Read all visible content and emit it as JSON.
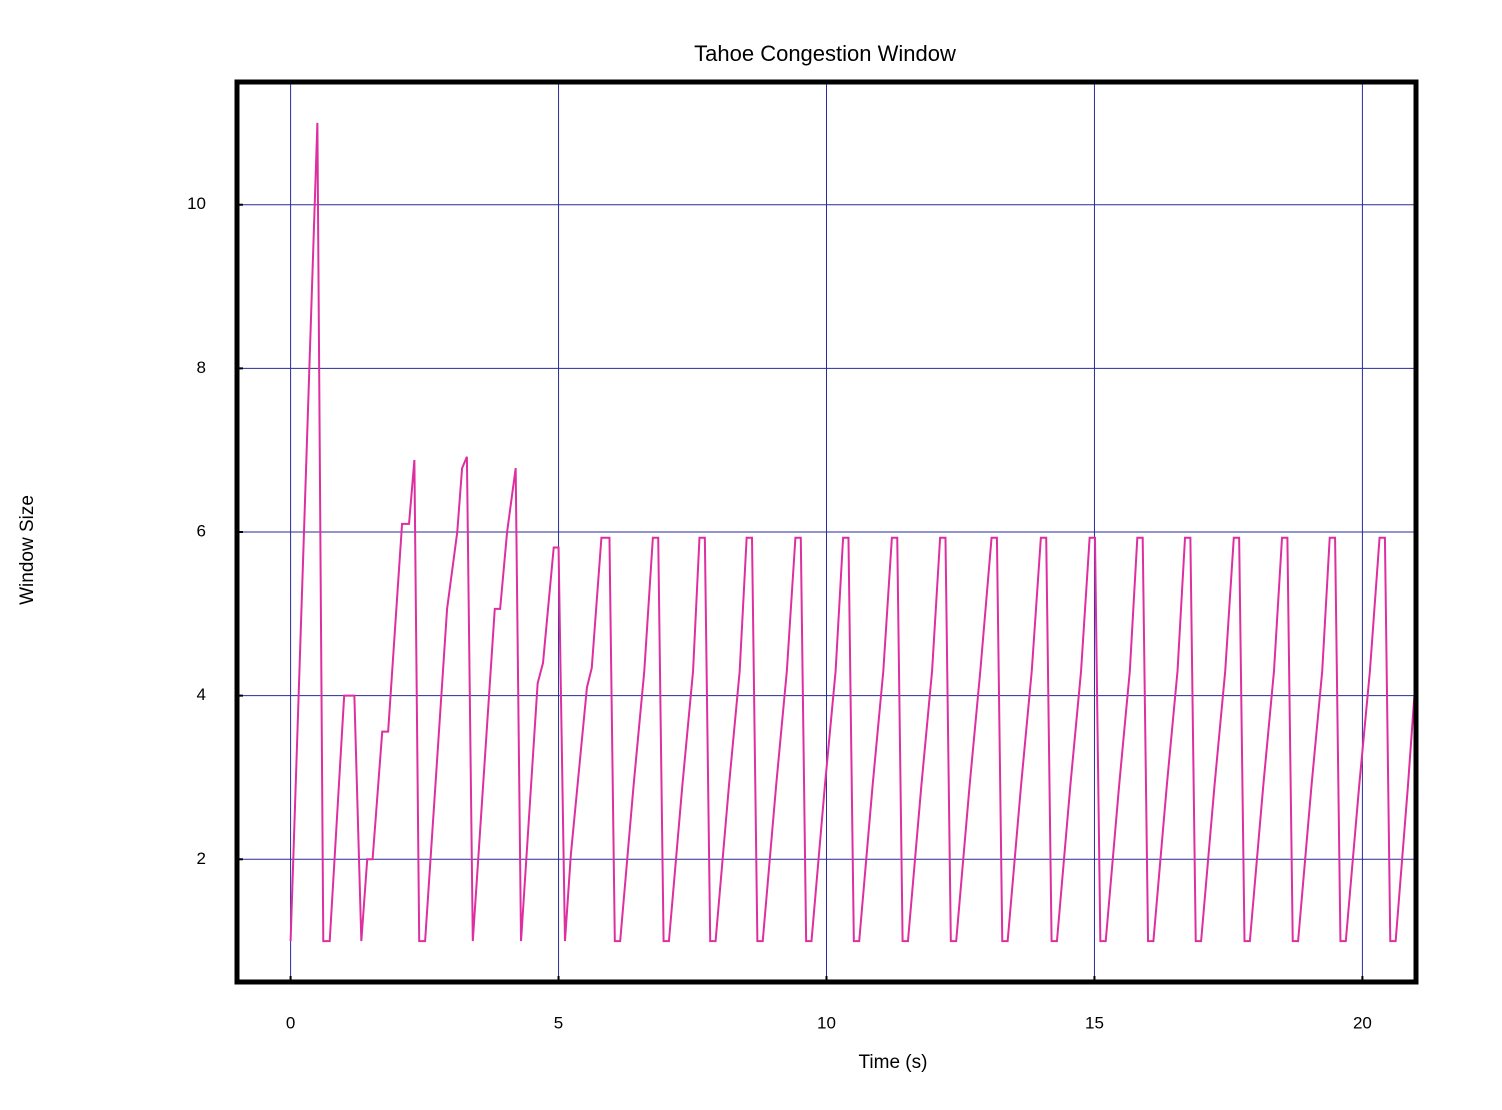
{
  "chart_data": {
    "type": "line",
    "title": "Tahoe Congestion Window",
    "x_label": "Time (s)",
    "y_label": "Window Size",
    "xlim": [
      -1,
      21
    ],
    "ylim": [
      0.5,
      11.5
    ],
    "xticks": [
      0,
      5,
      10,
      15,
      20
    ],
    "yticks": [
      2,
      4,
      6,
      8,
      10
    ],
    "grid": true,
    "grid_color": "#2a2a9a",
    "series": [
      {
        "color": "#dd2fa0",
        "x": [
          0,
          0.5,
          0.61,
          0.73,
          1.0,
          1.19,
          1.32,
          1.43,
          1.53,
          1.71,
          1.82,
          2.08,
          2.21,
          2.31,
          2.4,
          2.51,
          2.92,
          3.11,
          3.2,
          3.29,
          3.4,
          3.81,
          3.91,
          4.04,
          4.2,
          4.3,
          4.61,
          4.71,
          4.91,
          5.0,
          5.12,
          5.23,
          5.53,
          5.62,
          5.8,
          5.95,
          6.05,
          6.15,
          6.4,
          6.6,
          6.76,
          6.86,
          6.96,
          7.06,
          7.31,
          7.51,
          7.63,
          7.73,
          7.83,
          7.93,
          8.18,
          8.38,
          8.51,
          8.61,
          8.71,
          8.81,
          9.06,
          9.26,
          9.42,
          9.52,
          9.62,
          9.72,
          9.97,
          10.17,
          10.31,
          10.41,
          10.51,
          10.61,
          10.86,
          11.06,
          11.22,
          11.32,
          11.42,
          11.52,
          11.77,
          11.97,
          12.12,
          12.22,
          12.32,
          12.42,
          12.67,
          12.87,
          13.08,
          13.18,
          13.28,
          13.38,
          13.63,
          13.83,
          14.0,
          14.1,
          14.2,
          14.3,
          14.55,
          14.75,
          14.91,
          15.01,
          15.11,
          15.21,
          15.46,
          15.66,
          15.8,
          15.9,
          16.0,
          16.1,
          16.35,
          16.55,
          16.69,
          16.79,
          16.89,
          16.99,
          17.24,
          17.44,
          17.6,
          17.7,
          17.8,
          17.9,
          18.15,
          18.35,
          18.5,
          18.6,
          18.7,
          18.8,
          19.05,
          19.25,
          19.39,
          19.49,
          19.59,
          19.69,
          19.94,
          20.14,
          20.32,
          20.42,
          20.52,
          20.62,
          20.85,
          20.97
        ],
        "values": [
          1,
          11,
          1,
          1,
          4,
          4,
          1,
          2,
          2,
          3.56,
          3.56,
          6.1,
          6.1,
          6.88,
          1,
          1,
          5.06,
          6.0,
          6.78,
          6.92,
          1,
          5.06,
          5.06,
          6.0,
          6.78,
          1,
          4.15,
          4.4,
          5.81,
          5.81,
          1,
          2.06,
          4.1,
          4.34,
          5.93,
          5.93,
          1,
          1,
          2.9,
          4.3,
          5.93,
          5.93,
          1,
          1,
          2.9,
          4.3,
          5.93,
          5.93,
          1,
          1,
          2.9,
          4.3,
          5.93,
          5.93,
          1,
          1,
          2.9,
          4.3,
          5.93,
          5.93,
          1,
          1,
          2.9,
          4.3,
          5.93,
          5.93,
          1,
          1,
          2.9,
          4.3,
          5.93,
          5.93,
          1,
          1,
          2.9,
          4.3,
          5.93,
          5.93,
          1,
          1,
          2.9,
          4.3,
          5.93,
          5.93,
          1,
          1,
          2.9,
          4.3,
          5.93,
          5.93,
          1,
          1,
          2.9,
          4.3,
          5.93,
          5.93,
          1,
          1,
          2.9,
          4.3,
          5.93,
          5.93,
          1,
          1,
          2.9,
          4.3,
          5.93,
          5.93,
          1,
          1,
          2.9,
          4.3,
          5.93,
          5.93,
          1,
          1,
          2.9,
          4.3,
          5.93,
          5.93,
          1,
          1,
          2.9,
          4.3,
          5.93,
          5.93,
          1,
          1,
          2.9,
          4.3,
          5.93,
          5.93,
          1,
          1,
          2.9,
          4.0
        ]
      }
    ]
  }
}
